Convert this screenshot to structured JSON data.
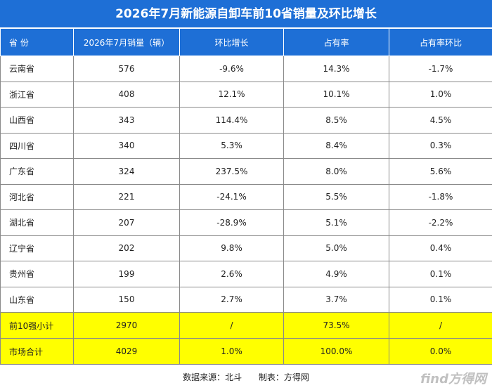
{
  "title": "2026年7月新能源自卸车前10省销量及环比增长",
  "table": {
    "header": [
      "省 份",
      "2026年7月销量（辆）",
      "环比增长",
      "占有率",
      "占有率环比"
    ],
    "rows": [
      [
        "云南省",
        "576",
        "-9.6%",
        "14.3%",
        "-1.7%"
      ],
      [
        "浙江省",
        "408",
        "12.1%",
        "10.1%",
        "1.0%"
      ],
      [
        "山西省",
        "343",
        "114.4%",
        "8.5%",
        "4.5%"
      ],
      [
        "四川省",
        "340",
        "5.3%",
        "8.4%",
        "0.3%"
      ],
      [
        "广东省",
        "324",
        "237.5%",
        "8.0%",
        "5.6%"
      ],
      [
        "河北省",
        "221",
        "-24.1%",
        "5.5%",
        "-1.8%"
      ],
      [
        "湖北省",
        "207",
        "-28.9%",
        "5.1%",
        "-2.2%"
      ],
      [
        "辽宁省",
        "202",
        "9.8%",
        "5.0%",
        "0.4%"
      ],
      [
        "贵州省",
        "199",
        "2.6%",
        "4.9%",
        "0.1%"
      ],
      [
        "山东省",
        "150",
        "2.7%",
        "3.7%",
        "0.1%"
      ]
    ],
    "totals": [
      [
        "前10强小计",
        "2970",
        "/",
        "73.5%",
        "/"
      ],
      [
        "市场合计",
        "4029",
        "1.0%",
        "100.0%",
        "0.0%"
      ]
    ]
  },
  "footer": {
    "source": "数据来源：北斗",
    "maker": "制表：方得网"
  },
  "watermark": "find方得网"
}
